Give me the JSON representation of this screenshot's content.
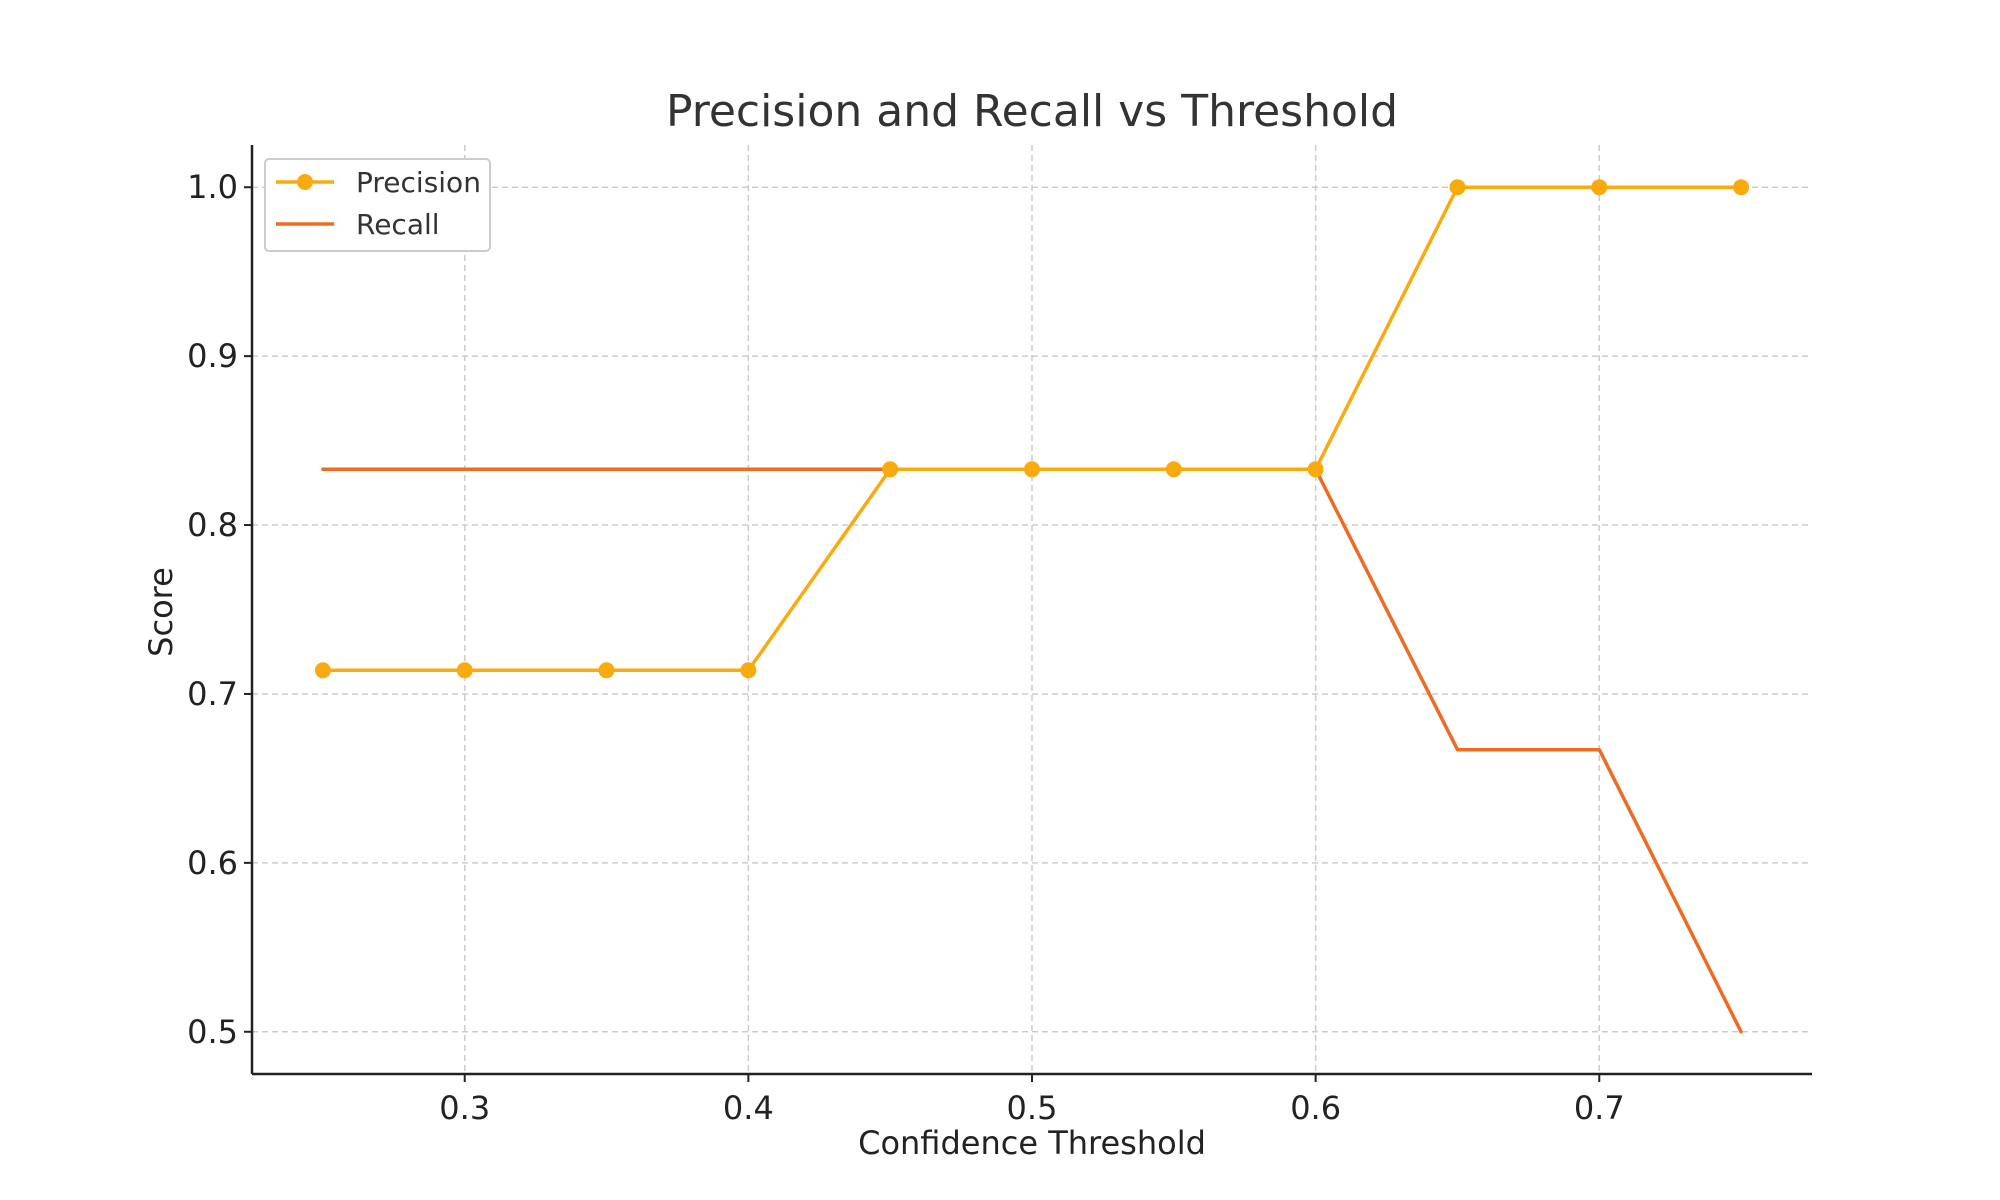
{
  "chart_data": {
    "type": "line",
    "title": "Precision and Recall vs Threshold",
    "xlabel": "Confidence Threshold",
    "ylabel": "Score",
    "x": [
      0.25,
      0.3,
      0.35,
      0.4,
      0.45,
      0.5,
      0.55,
      0.6,
      0.65,
      0.7,
      0.75
    ],
    "xlim": [
      0.225,
      0.775
    ],
    "ylim": [
      0.475,
      1.025
    ],
    "xticks": [
      "0.3",
      "0.4",
      "0.5",
      "0.6",
      "0.7"
    ],
    "yticks": [
      "0.5",
      "0.6",
      "0.7",
      "0.8",
      "0.9",
      "1.0"
    ],
    "grid": true,
    "legend_position": "top-left",
    "series": [
      {
        "name": "Precision",
        "color": "#F9AA0F",
        "marker": "circle",
        "values": [
          0.714,
          0.714,
          0.714,
          0.714,
          0.833,
          0.833,
          0.833,
          0.833,
          1.0,
          1.0,
          1.0
        ]
      },
      {
        "name": "Recall",
        "color": "#EE6B24",
        "marker": "none",
        "values": [
          0.833,
          0.833,
          0.833,
          0.833,
          0.833,
          0.833,
          0.833,
          0.833,
          0.667,
          0.667,
          0.5
        ]
      }
    ]
  }
}
